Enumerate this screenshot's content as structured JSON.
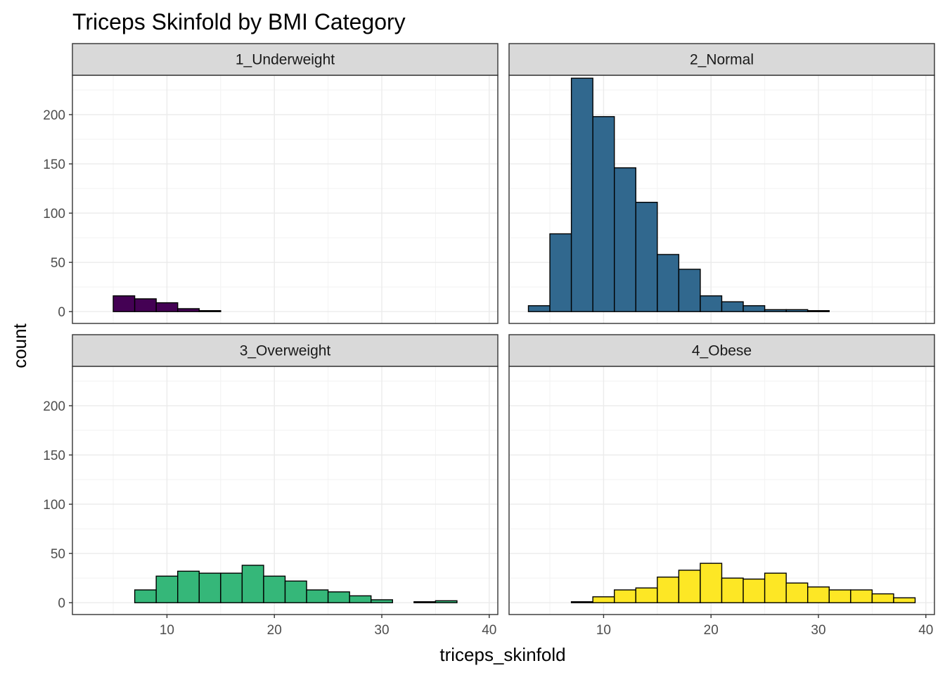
{
  "chart_data": {
    "type": "bar",
    "title": "Triceps Skinfold by BMI Category",
    "xlabel": "triceps_skinfold",
    "ylabel": "count",
    "xlim": [
      1.2,
      40.8
    ],
    "ylim": [
      -12,
      240
    ],
    "x_ticks": [
      10,
      20,
      30,
      40
    ],
    "y_ticks": [
      0,
      50,
      100,
      150,
      200
    ],
    "bin_width": 2,
    "bin_starts": [
      3,
      5,
      7,
      9,
      11,
      13,
      15,
      17,
      19,
      21,
      23,
      25,
      27,
      29,
      31,
      33,
      35,
      37
    ],
    "grid": true,
    "legend": "none",
    "panels": [
      {
        "name": "1_Underweight",
        "color": "#440154",
        "values": [
          0,
          16,
          13,
          9,
          3,
          1,
          0,
          0,
          0,
          0,
          0,
          0,
          0,
          0,
          0,
          0,
          0,
          0
        ]
      },
      {
        "name": "2_Normal",
        "color": "#31688e",
        "values": [
          6,
          79,
          237,
          198,
          146,
          111,
          58,
          43,
          16,
          10,
          6,
          2,
          2,
          1,
          0,
          0,
          0,
          0
        ]
      },
      {
        "name": "3_Overweight",
        "color": "#35b779",
        "values": [
          0,
          0,
          13,
          27,
          32,
          30,
          30,
          38,
          27,
          22,
          13,
          11,
          7,
          3,
          0,
          1,
          2,
          0
        ]
      },
      {
        "name": "4_Obese",
        "color": "#fde725",
        "values": [
          0,
          0,
          1,
          6,
          13,
          15,
          26,
          33,
          40,
          25,
          24,
          30,
          20,
          16,
          13,
          13,
          9,
          5
        ]
      }
    ]
  }
}
